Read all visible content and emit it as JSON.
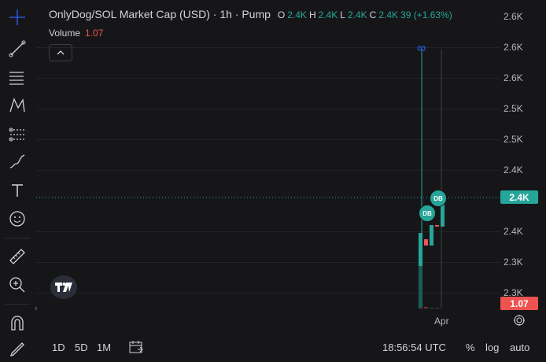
{
  "header": {
    "title": "OnlyDog/SOL Market Cap (USD) · 1h · Pump",
    "ohlc": [
      {
        "key": "O",
        "value": "2.4K"
      },
      {
        "key": "H",
        "value": "2.4K"
      },
      {
        "key": "L",
        "value": "2.4K"
      },
      {
        "key": "C",
        "value": "2.4K"
      }
    ],
    "change": "39 (+1.63%)"
  },
  "volume": {
    "label": "Volume",
    "value": "1.07"
  },
  "price_axis": {
    "ticks": [
      "2.6K",
      "2.6K",
      "2.6K",
      "2.5K",
      "2.5K",
      "2.4K",
      "2.4K",
      "2.4K",
      "2.3K",
      "2.3K"
    ],
    "current_price_label": "2.4K",
    "volume_label": "1.07"
  },
  "time_axis": {
    "label": "Apr"
  },
  "markers": {
    "infinity": "∞",
    "badge": "DB"
  },
  "bottom_bar": {
    "timeframes": [
      "1D",
      "5D",
      "1M"
    ],
    "clock": "18:56:54 UTC",
    "percent": "%",
    "log": "log",
    "auto": "auto"
  },
  "colors": {
    "up": "#26a69a",
    "down": "#ef5350",
    "line": "#2962ff"
  },
  "toolbar": {
    "icons": [
      "crosshair-icon",
      "trend-line-icon",
      "fib-lines-icon",
      "pattern-icon",
      "measure-lines-icon",
      "brush-icon",
      "text-icon",
      "emoji-icon",
      "ruler-icon",
      "zoom-in-icon",
      "magnet-icon",
      "pencil-icon"
    ]
  }
}
